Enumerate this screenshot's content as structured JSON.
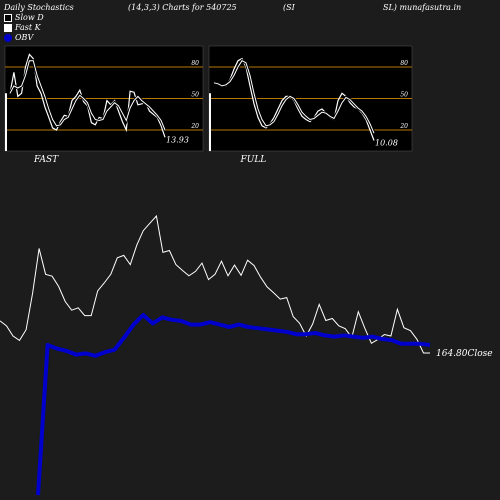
{
  "header": {
    "left": "Daily Stochastics",
    "params": "(14,3,3) Charts for 540725",
    "sym_a": "(SI",
    "sym_b": "SL) munafasutra.in"
  },
  "legend": [
    {
      "label": "Slow  D",
      "swatch": "slow"
    },
    {
      "label": "Fast K",
      "swatch": "fast"
    },
    {
      "label": "OBV",
      "swatch": "obv"
    }
  ],
  "colors": {
    "background": "#1c1c1c",
    "panel_background": "#000000",
    "level_line": "#b87800",
    "price_line": "#ffffff",
    "obv_line": "#0000cc"
  },
  "chart_data": [
    {
      "type": "line",
      "title": "FAST",
      "ylim": [
        0,
        100
      ],
      "levels": [
        20,
        50,
        80
      ],
      "tick_labels": [
        "80",
        "50",
        "20"
      ],
      "last_value_label": "13.93",
      "series": [
        {
          "name": "Fast K",
          "values": [
            55,
            75,
            52,
            55,
            80,
            92,
            88,
            62,
            55,
            42,
            32,
            22,
            20,
            28,
            34,
            33,
            48,
            52,
            58,
            47,
            43,
            27,
            25,
            32,
            31,
            48,
            44,
            48,
            38,
            28,
            20,
            57,
            56,
            44,
            45,
            46,
            38,
            35,
            32,
            24,
            13
          ]
        },
        {
          "name": "Slow  D",
          "values": [
            55,
            62,
            60,
            62,
            72,
            86,
            86,
            72,
            62,
            52,
            40,
            30,
            24,
            25,
            30,
            32,
            40,
            48,
            53,
            50,
            46,
            36,
            30,
            29,
            30,
            38,
            42,
            46,
            43,
            36,
            29,
            41,
            48,
            52,
            48,
            45,
            42,
            38,
            34,
            29,
            20
          ]
        }
      ]
    },
    {
      "type": "line",
      "title": "FULL",
      "ylim": [
        0,
        100
      ],
      "levels": [
        20,
        50,
        80
      ],
      "tick_labels": [
        "80",
        "50",
        "20"
      ],
      "last_value_label": "10.08",
      "series": [
        {
          "name": "Fast K",
          "values": [
            65,
            65,
            62,
            62,
            68,
            78,
            86,
            88,
            80,
            62,
            45,
            32,
            24,
            22,
            26,
            32,
            40,
            48,
            52,
            52,
            48,
            40,
            33,
            30,
            28,
            32,
            38,
            40,
            36,
            32,
            30,
            48,
            55,
            52,
            46,
            42,
            40,
            36,
            30,
            20,
            10
          ]
        },
        {
          "name": "Slow  D",
          "values": [
            65,
            64,
            62,
            63,
            66,
            72,
            80,
            86,
            84,
            72,
            55,
            40,
            30,
            24,
            25,
            28,
            35,
            43,
            49,
            52,
            50,
            44,
            37,
            33,
            30,
            31,
            34,
            37,
            36,
            33,
            31,
            38,
            46,
            51,
            49,
            45,
            41,
            38,
            33,
            26,
            17
          ]
        }
      ]
    },
    {
      "type": "line",
      "title": "",
      "last_value_label": "164.80Close",
      "series": [
        {
          "name": "Close",
          "values": [
            171.4,
            170.4,
            168.3,
            167.4,
            169.6,
            177.1,
            186.3,
            181.0,
            180.6,
            178.5,
            175.4,
            173.6,
            174.1,
            172.5,
            172.5,
            177.6,
            179.2,
            181.0,
            184.4,
            184.9,
            183.0,
            187.0,
            190.0,
            191.5,
            193.0,
            185.5,
            185.9,
            183.0,
            181.8,
            180.7,
            181.6,
            183.3,
            179.9,
            181.0,
            183.7,
            180.7,
            182.9,
            180.8,
            183.9,
            182.8,
            180.4,
            178.4,
            177.2,
            175.9,
            176.2,
            172.3,
            170.9,
            168.3,
            170.8,
            174.8,
            171.5,
            171.9,
            170.4,
            169.8,
            168.0,
            173.3,
            169.9,
            166.8,
            167.6,
            168.6,
            168.3,
            173.8,
            170.0,
            169.4,
            167.6,
            164.8,
            164.8
          ]
        },
        {
          "name": "OBV",
          "values": [
            -1000,
            250,
            220,
            200,
            170,
            180,
            160,
            190,
            210,
            310,
            420,
            500,
            430,
            480,
            460,
            450,
            420,
            420,
            440,
            420,
            400,
            420,
            400,
            390,
            380,
            370,
            360,
            340,
            340,
            350,
            330,
            320,
            330,
            320,
            310,
            320,
            300,
            290,
            260,
            260,
            260,
            250
          ]
        }
      ]
    }
  ]
}
